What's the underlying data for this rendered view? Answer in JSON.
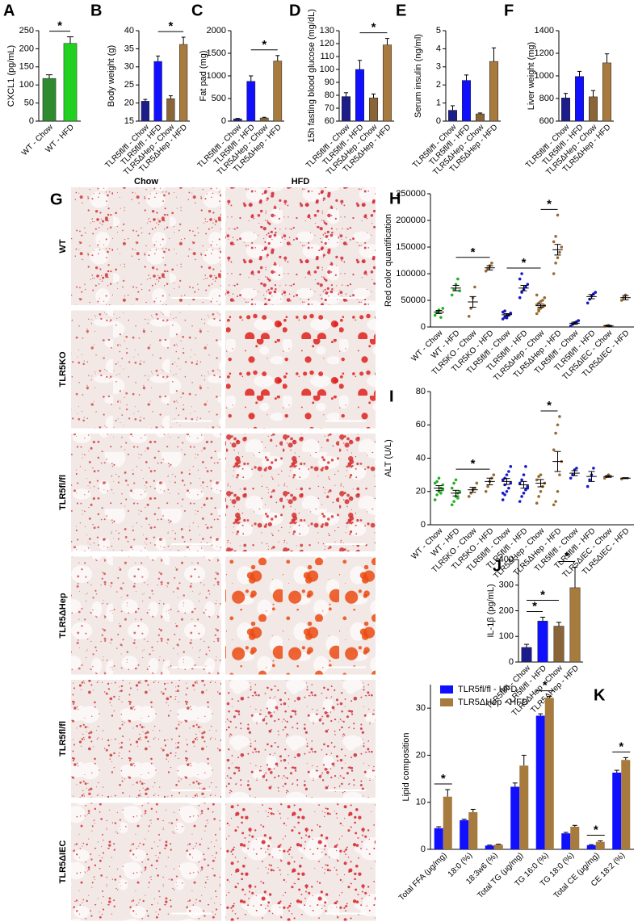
{
  "chart_data": [
    {
      "type": "bar",
      "label": "A",
      "y_label": "CXCL1 (pg/mL)",
      "categories": [
        "WT - Chow",
        "WT - HFD"
      ],
      "values": [
        118,
        215
      ],
      "errors": [
        10,
        18
      ],
      "colors": [
        "#2e8b2e",
        "#22d022"
      ],
      "ylim": [
        0,
        250
      ],
      "yticks": [
        0,
        50,
        100,
        150,
        200,
        250
      ],
      "significance": [
        {
          "label": "*",
          "groups": [
            0,
            1
          ]
        }
      ]
    },
    {
      "type": "bar",
      "label": "B",
      "y_label": "Body weight (g)",
      "categories": [
        "TLR5fl/fl - Chow",
        "TLR5fl/fl - HFD",
        "TLR5ΔHep - Chow",
        "TLR5ΔHep - HFD"
      ],
      "values": [
        20.5,
        31.5,
        21.2,
        36.2
      ],
      "errors": [
        0.5,
        1.5,
        0.8,
        2
      ],
      "colors": [
        "#1c1c8a",
        "#1010ff",
        "#8a6538",
        "#a77a3e"
      ],
      "ylim": [
        15,
        40
      ],
      "yticks": [
        15,
        20,
        25,
        30,
        35,
        40
      ],
      "significance": [
        {
          "label": "*",
          "groups": [
            1,
            3
          ]
        }
      ]
    },
    {
      "type": "bar",
      "label": "C",
      "y_label": "Fat pad (mg)",
      "categories": [
        "TLR5fl/fl - Chow",
        "TLR5fl/fl - HFD",
        "TLR5ΔHep - Chow",
        "TLR5ΔHep - HFD"
      ],
      "values": [
        50,
        880,
        70,
        1330
      ],
      "errors": [
        10,
        120,
        15,
        120
      ],
      "colors": [
        "#1c1c8a",
        "#1010ff",
        "#8a6538",
        "#a77a3e"
      ],
      "ylim": [
        0,
        2000
      ],
      "yticks": [
        0,
        500,
        1000,
        1500,
        2000
      ],
      "significance": [
        {
          "label": "*",
          "groups": [
            1,
            3
          ]
        }
      ]
    },
    {
      "type": "bar",
      "label": "D",
      "y_label": "15h fasting blood glucose (mg/dL)",
      "categories": [
        "TLR5fl/fl - Chow",
        "TLR5fl/fl - HFD",
        "TLR5ΔHep - Chow",
        "TLR5ΔHep - HFD"
      ],
      "values": [
        79,
        100,
        78,
        119
      ],
      "errors": [
        3,
        7,
        3,
        5
      ],
      "colors": [
        "#1c1c8a",
        "#1010ff",
        "#8a6538",
        "#a77a3e"
      ],
      "ylim": [
        60,
        130
      ],
      "yticks": [
        60,
        70,
        80,
        90,
        100,
        110,
        120,
        130
      ],
      "significance": [
        {
          "label": "*",
          "groups": [
            1,
            3
          ]
        }
      ]
    },
    {
      "type": "bar",
      "label": "E",
      "y_label": "Serum insulin (ng/ml)",
      "categories": [
        "TLR5fl/fl - Chow",
        "TLR5fl/fl - HFD",
        "TLR5ΔHep - Chow",
        "TLR5ΔHep - HFD"
      ],
      "values": [
        0.6,
        2.25,
        0.4,
        3.3
      ],
      "errors": [
        0.25,
        0.3,
        0.05,
        0.75
      ],
      "colors": [
        "#1c1c8a",
        "#1010ff",
        "#8a6538",
        "#a77a3e"
      ],
      "ylim": [
        0,
        5
      ],
      "yticks": [
        0,
        1,
        2,
        3,
        4,
        5
      ],
      "significance": []
    },
    {
      "type": "bar",
      "label": "F",
      "y_label": "Liver weight (mg)",
      "categories": [
        "TLR5fl/fl - Chow",
        "TLR5fl/fl - HFD",
        "TLR5ΔHep - Chow",
        "TLR5ΔHep - HFD"
      ],
      "values": [
        805,
        995,
        815,
        1115
      ],
      "errors": [
        40,
        45,
        55,
        80
      ],
      "colors": [
        "#1c1c8a",
        "#1010ff",
        "#8a6538",
        "#a77a3e"
      ],
      "ylim": [
        600,
        1400
      ],
      "yticks": [
        600,
        800,
        1000,
        1200,
        1400
      ],
      "significance": []
    },
    {
      "type": "dotplot",
      "label": "H",
      "y_label": "Red color quantification",
      "categories": [
        "WT - Chow",
        "WT - HFD",
        "TLR5KO - Chow",
        "TLR5KO - HFD",
        "TLR5fl/fl - Chow",
        "TLR5fl/fl - HFD",
        "TLR5ΔHep - Chow",
        "TLR5ΔHep - HFD",
        "TLR5fl/fl - Chow",
        "TLR5fl/fl - HFD",
        "TLR5ΔIEC - Chow",
        "TLR5ΔIEC - HFD"
      ],
      "values": [
        28000,
        73000,
        47000,
        111000,
        23000,
        73000,
        40000,
        145000,
        7000,
        57000,
        2000,
        55000
      ],
      "errors": [
        3000,
        5000,
        10000,
        4000,
        2000,
        5000,
        3000,
        10000,
        2000,
        4000,
        1000,
        4000
      ],
      "points": [
        [
          22000,
          28000,
          32000,
          18000,
          35000
        ],
        [
          60000,
          70000,
          80000,
          90000,
          68000
        ],
        [
          20000,
          35000,
          55000,
          75000
        ],
        [
          105000,
          110000,
          115000,
          120000
        ],
        [
          15000,
          18000,
          20000,
          22000,
          25000,
          28000,
          30000,
          17000,
          23000,
          26000
        ],
        [
          55000,
          65000,
          70000,
          75000,
          80000,
          90000,
          100000
        ],
        [
          25000,
          30000,
          35000,
          38000,
          40000,
          42000,
          45000,
          48000,
          50000,
          55000,
          60000,
          33000
        ],
        [
          100000,
          120000,
          130000,
          140000,
          150000,
          160000,
          170000,
          210000
        ],
        [
          2000,
          5000,
          8000,
          10000,
          12000
        ],
        [
          45000,
          52000,
          58000,
          62000,
          65000
        ],
        [
          1000,
          2000,
          3000
        ],
        [
          50000,
          55000,
          60000
        ]
      ],
      "colors": [
        "#22b022",
        "#22b022",
        "#9a6a30",
        "#9a6a30",
        "#1818c8",
        "#1818c8",
        "#9a6a30",
        "#9a6a30",
        "#1818c8",
        "#1818c8",
        "#9a6a30",
        "#9a6a30"
      ],
      "ylim": [
        0,
        250000
      ],
      "yticks": [
        0,
        50000,
        100000,
        150000,
        200000,
        250000
      ],
      "significance": [
        {
          "label": "*",
          "groups": [
            1,
            3
          ]
        },
        {
          "label": "*",
          "groups": [
            4,
            6
          ]
        },
        {
          "label": "*",
          "groups": [
            6,
            7
          ]
        }
      ]
    },
    {
      "type": "dotplot",
      "label": "I",
      "y_label": "ALT (U/L)",
      "categories": [
        "WT - Chow",
        "WT - HFD",
        "TLR5KO - Chow",
        "TLR5KO - HFD",
        "TLR5fl/fl - Chow",
        "TLR5fl/fl - HFD",
        "TLR5ΔHep - Chow",
        "TLR5ΔHep - HFD",
        "TLR5fl/fl - Chow",
        "TLR5fl/fl - HFD",
        "TLR5ΔIEC - Chow",
        "TLR5ΔIEC - HFD"
      ],
      "values": [
        22,
        19,
        21,
        26,
        26,
        24,
        25,
        38,
        31,
        29,
        29,
        28
      ],
      "errors": [
        1.5,
        1.7,
        1.5,
        2,
        1.8,
        2,
        2.2,
        6,
        1.5,
        3,
        0.5,
        0.3
      ],
      "points": [
        [
          15,
          18,
          20,
          22,
          24,
          25,
          26,
          28,
          19,
          21
        ],
        [
          12,
          14,
          17,
          19,
          20,
          22,
          25,
          27,
          16
        ],
        [
          17,
          19,
          21,
          22,
          25
        ],
        [
          20,
          23,
          26,
          28,
          30
        ],
        [
          15,
          18,
          20,
          22,
          25,
          27,
          28,
          30,
          32,
          35,
          19,
          24
        ],
        [
          14,
          17,
          19,
          21,
          23,
          25,
          27,
          30,
          35,
          22
        ],
        [
          13,
          17,
          20,
          23,
          25,
          27,
          29,
          30
        ],
        [
          12,
          14,
          20,
          30,
          38,
          45,
          55,
          60,
          65
        ],
        [
          28,
          30,
          33,
          34
        ],
        [
          23,
          27,
          30,
          34
        ],
        [
          28,
          29,
          30
        ],
        [
          27.5
        ]
      ],
      "colors": [
        "#22b022",
        "#22b022",
        "#9a6a30",
        "#9a6a30",
        "#1818c8",
        "#1818c8",
        "#9a6a30",
        "#9a6a30",
        "#1818c8",
        "#1818c8",
        "#9a6a30",
        "#9a6a30"
      ],
      "ylim": [
        0,
        80
      ],
      "yticks": [
        0,
        20,
        40,
        60,
        80
      ],
      "significance": [
        {
          "label": "*",
          "groups": [
            1,
            3
          ]
        },
        {
          "label": "*",
          "groups": [
            6,
            7
          ]
        }
      ]
    },
    {
      "type": "bar",
      "label": "J",
      "y_label": "IL-1β (pg/mL)",
      "categories": [
        "TLR5fl/fl - Chow",
        "TLR5fl/fl - HFD",
        "TLR5ΔHep - Chow",
        "TLR5ΔHep - HFD"
      ],
      "values": [
        57,
        160,
        140,
        290
      ],
      "errors": [
        12,
        15,
        15,
        80
      ],
      "colors": [
        "#1c1c8a",
        "#1010ff",
        "#8a6538",
        "#a77a3e"
      ],
      "ylim": [
        0,
        400
      ],
      "yticks": [
        0,
        100,
        200,
        300,
        400
      ],
      "significance": [
        {
          "label": "*",
          "groups": [
            0,
            1
          ]
        },
        {
          "label": "*",
          "groups": [
            0,
            2
          ]
        },
        {
          "label": "*",
          "groups": [
            2,
            3
          ]
        }
      ]
    },
    {
      "type": "bar",
      "label": "K",
      "y_label": "Lipid composition",
      "categories": [
        "Total FFA (μg/mg)",
        "18:0 (%)",
        "18:3w6 (%)",
        "Total TG (μg/mg)",
        "TG 16:0 (%)",
        "TG 18:0 (%)",
        "Total CE (μg/mg)",
        "CE 18:2 (%)"
      ],
      "series": [
        {
          "name": "TLR5fl/fl - HFD",
          "color": "#1010ff",
          "values": [
            4.5,
            6.2,
            0.8,
            13.3,
            28.4,
            3.4,
            0.9,
            16.3
          ],
          "errors": [
            0.3,
            0.2,
            0.1,
            0.8,
            0.4,
            0.2,
            0.1,
            0.5
          ]
        },
        {
          "name": "TLR5ΔHep - HFD",
          "color": "#a77a3e",
          "values": [
            11.2,
            7.9,
            1.0,
            17.8,
            32.2,
            4.8,
            1.6,
            19.0
          ],
          "errors": [
            1.5,
            0.6,
            0.1,
            2.2,
            0.3,
            0.3,
            0.2,
            0.5
          ]
        }
      ],
      "ylim": [
        0,
        35
      ],
      "yticks": [
        0,
        10,
        20,
        30
      ],
      "legend": "upper left",
      "significance": [
        {
          "label": "*",
          "groups": [
            0
          ]
        },
        {
          "label": "*",
          "groups": [
            4
          ]
        },
        {
          "label": "*",
          "groups": [
            6
          ]
        },
        {
          "label": "*",
          "groups": [
            7
          ]
        }
      ]
    }
  ],
  "histology": {
    "label": "G",
    "columns": [
      "Chow",
      "HFD"
    ],
    "rows": [
      "WT",
      "TLR5KO",
      "TLR5fl/fl",
      "TLR5ΔHep",
      "TLR5fl/fl",
      "TLR5ΔIEC"
    ]
  }
}
